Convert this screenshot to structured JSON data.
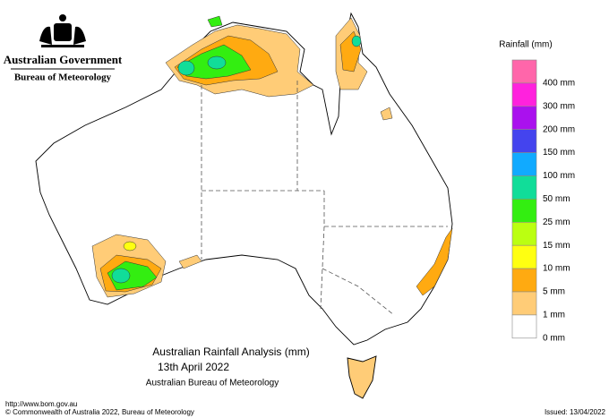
{
  "header": {
    "government": "Australian Government",
    "agency": "Bureau of Meteorology"
  },
  "legend": {
    "title": "Rainfall (mm)",
    "items": [
      {
        "label": "400 mm",
        "color": "#ff66aa"
      },
      {
        "label": "300 mm",
        "color": "#ff22dd"
      },
      {
        "label": "200 mm",
        "color": "#aa11ee"
      },
      {
        "label": "150 mm",
        "color": "#4444ee"
      },
      {
        "label": "100 mm",
        "color": "#11aaff"
      },
      {
        "label": "50 mm",
        "color": "#11dd99"
      },
      {
        "label": "25 mm",
        "color": "#33ee11"
      },
      {
        "label": "15 mm",
        "color": "#bbff11"
      },
      {
        "label": "10 mm",
        "color": "#ffff11"
      },
      {
        "label": "5 mm",
        "color": "#ffaa11"
      },
      {
        "label": "1 mm",
        "color": "#ffcc77"
      },
      {
        "label": "0 mm",
        "color": "#ffffff"
      }
    ]
  },
  "titles": {
    "main": "Australian Rainfall Analysis (mm)",
    "date": "13th April 2022",
    "source": "Australian Bureau of Meteorology"
  },
  "footer": {
    "url": "http://www.bom.gov.au",
    "copyright": "© Commonwealth of Australia 2022, Bureau of Meteorology",
    "issued": "Issued: 13/04/2022"
  }
}
